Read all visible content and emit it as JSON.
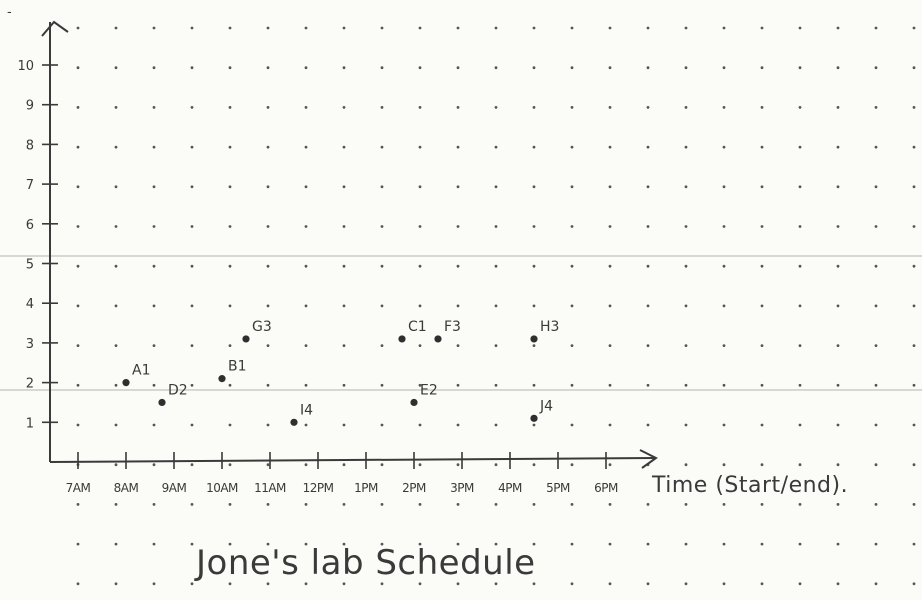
{
  "chart_data": {
    "type": "scatter",
    "title": "Jone's lab Schedule",
    "xlabel": "Time (Start/end).",
    "ylabel": "",
    "x_categories": [
      "7AM",
      "8AM",
      "9AM",
      "10AM",
      "11AM",
      "12PM",
      "1PM",
      "2PM",
      "3PM",
      "4PM",
      "5PM",
      "6PM"
    ],
    "y_ticks": [
      1,
      2,
      3,
      4,
      5,
      6,
      7,
      8,
      9,
      10
    ],
    "y_tick_labels": [
      "1",
      "2",
      "3",
      "4",
      "5",
      "6",
      "7",
      "8",
      "9",
      "10"
    ],
    "y_top_mark": "-",
    "xlim": [
      6.5,
      18.5
    ],
    "ylim": [
      0,
      11
    ],
    "grid": "dotted",
    "points": [
      {
        "label": "A1",
        "x": 8.0,
        "y": 2.0
      },
      {
        "label": "D2",
        "x": 8.75,
        "y": 1.5
      },
      {
        "label": "B1",
        "x": 10.0,
        "y": 2.1
      },
      {
        "label": "G3",
        "x": 10.5,
        "y": 3.1
      },
      {
        "label": "I4",
        "x": 11.5,
        "y": 1.0
      },
      {
        "label": "C1",
        "x": 13.75,
        "y": 3.1
      },
      {
        "label": "E2",
        "x": 14.0,
        "y": 1.5
      },
      {
        "label": "F3",
        "x": 14.5,
        "y": 3.1
      },
      {
        "label": "H3",
        "x": 16.5,
        "y": 3.1
      },
      {
        "label": "J4",
        "x": 16.5,
        "y": 1.1
      }
    ]
  }
}
